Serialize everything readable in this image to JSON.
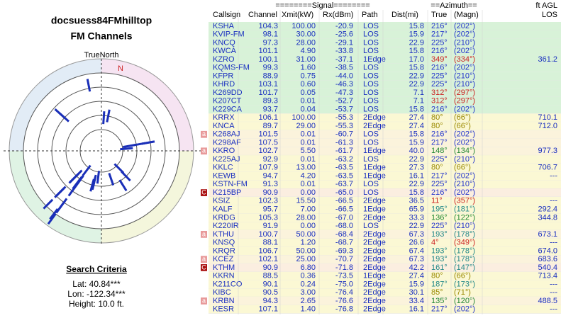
{
  "header": {
    "title": "docsuess84FMhilltop",
    "subtitle": "FM Channels"
  },
  "compass": {
    "label": "TrueNorth",
    "north": "N"
  },
  "search": {
    "title": "Search Criteria",
    "lat": "Lat: 40.84***",
    "lon": "Lon: -122.34***",
    "height": "Height: 10.0 ft."
  },
  "table": {
    "group_headers": {
      "signal": "========Signal========",
      "azimuth": "==Azimuth==",
      "agl": "ft AGL"
    },
    "columns": [
      "Callsign",
      "Channel",
      "Xmit(kW)",
      "Rx(dBm)",
      "Path",
      "Dist(mi)",
      "True",
      "(Magn)",
      "LOS"
    ],
    "rows": [
      {
        "cells": [
          "KSHA",
          "104.3",
          "100.00",
          "-20.9",
          "LOS",
          "15.8",
          "216°",
          "(202°)"
        ],
        "az_color": "#2233cc",
        "bg": "#d8f2d8"
      },
      {
        "cells": [
          "KVIP-FM",
          "98.1",
          "30.00",
          "-25.6",
          "LOS",
          "15.9",
          "217°",
          "(202°)"
        ],
        "az_color": "#2233cc",
        "bg": "#d8f2d8"
      },
      {
        "cells": [
          "KNCQ",
          "97.3",
          "28.00",
          "-29.1",
          "LOS",
          "22.9",
          "225°",
          "(210°)"
        ],
        "az_color": "#2233cc",
        "bg": "#d8f2d8"
      },
      {
        "cells": [
          "KWCA",
          "101.1",
          "4.90",
          "-33.8",
          "LOS",
          "15.8",
          "216°",
          "(202°)"
        ],
        "az_color": "#2233cc",
        "bg": "#d8f2d8"
      },
      {
        "cells": [
          "KZRO",
          "100.1",
          "31.00",
          "-37.1",
          "1Edge",
          "17.0",
          "349°",
          "(334°)",
          "361.2"
        ],
        "az_color": "#cc2222",
        "bg": "#d8f2d8"
      },
      {
        "cells": [
          "KQMS-FM",
          "99.3",
          "1.60",
          "-38.5",
          "LOS",
          "15.8",
          "216°",
          "(202°)"
        ],
        "az_color": "#2233cc",
        "bg": "#d8f2d8"
      },
      {
        "cells": [
          "KFPR",
          "88.9",
          "0.75",
          "-44.0",
          "LOS",
          "22.9",
          "225°",
          "(210°)"
        ],
        "az_color": "#2233cc",
        "bg": "#d8f2d8"
      },
      {
        "cells": [
          "KHRD",
          "103.1",
          "0.60",
          "-46.3",
          "LOS",
          "22.9",
          "225°",
          "(210°)"
        ],
        "az_color": "#2233cc",
        "bg": "#d8f2d8"
      },
      {
        "cells": [
          "K269DD",
          "101.7",
          "0.05",
          "-47.3",
          "LOS",
          "7.1",
          "312°",
          "(297°)"
        ],
        "az_color": "#cc2222",
        "bg": "#d8f2d8"
      },
      {
        "cells": [
          "K207CT",
          "89.3",
          "0.01",
          "-52.7",
          "LOS",
          "7.1",
          "312°",
          "(297°)"
        ],
        "az_color": "#cc2222",
        "bg": "#d8f2d8"
      },
      {
        "cells": [
          "K229CA",
          "93.7",
          "0.04",
          "-53.7",
          "LOS",
          "15.8",
          "216°",
          "(202°)"
        ],
        "az_color": "#2233cc",
        "bg": "#d8f2d8"
      },
      {
        "cells": [
          "KRRX",
          "106.1",
          "100.00",
          "-55.3",
          "2Edge",
          "27.4",
          "80°",
          "(66°)",
          "710.1"
        ],
        "az_color": "#998800",
        "bg": "#fbf8d4"
      },
      {
        "cells": [
          "KNCA",
          "89.7",
          "29.00",
          "-55.3",
          "2Edge",
          "27.4",
          "80°",
          "(66°)",
          "712.0"
        ],
        "az_color": "#998800",
        "bg": "#fbf8d4"
      },
      {
        "flag": "a",
        "cells": [
          "K268AJ",
          "101.5",
          "0.01",
          "-60.7",
          "LOS",
          "15.8",
          "216°",
          "(202°)"
        ],
        "az_color": "#2233cc",
        "bg": "#fbf3dc"
      },
      {
        "cells": [
          "K298AF",
          "107.5",
          "0.01",
          "-61.3",
          "LOS",
          "15.9",
          "217°",
          "(202°)"
        ],
        "az_color": "#2233cc",
        "bg": "#fbf3dc"
      },
      {
        "flag": "a",
        "cells": [
          "KKRO",
          "102.7",
          "5.50",
          "-61.7",
          "1Edge",
          "40.0",
          "148°",
          "(134°)",
          "977.3"
        ],
        "az_color": "#228833",
        "bg": "#fbf3dc"
      },
      {
        "cells": [
          "K225AJ",
          "92.9",
          "0.01",
          "-63.2",
          "LOS",
          "22.9",
          "225°",
          "(210°)"
        ],
        "az_color": "#2233cc",
        "bg": "#fbf8d4"
      },
      {
        "cells": [
          "KKLC",
          "107.9",
          "13.00",
          "-63.5",
          "1Edge",
          "27.3",
          "80°",
          "(66°)",
          "706.7"
        ],
        "az_color": "#998800",
        "bg": "#fbf8d4"
      },
      {
        "cells": [
          "KEWB",
          "94.7",
          "4.20",
          "-63.5",
          "1Edge",
          "16.1",
          "217°",
          "(202°)",
          "---"
        ],
        "az_color": "#2233cc",
        "bg": "#fbf8d4"
      },
      {
        "cells": [
          "KSTN-FM",
          "91.3",
          "0.01",
          "-63.7",
          "LOS",
          "22.9",
          "225°",
          "(210°)"
        ],
        "az_color": "#2233cc",
        "bg": "#fbf8d4"
      },
      {
        "flag": "C",
        "cells": [
          "K215BP",
          "90.9",
          "0.00",
          "-65.0",
          "LOS",
          "15.8",
          "216°",
          "(202°)"
        ],
        "az_color": "#2233cc",
        "bg": "#fbeee0"
      },
      {
        "cells": [
          "KSIZ",
          "102.3",
          "15.50",
          "-66.5",
          "2Edge",
          "36.5",
          "11°",
          "(357°)",
          "---"
        ],
        "az_color": "#cc2222",
        "bg": "#fbf8d4"
      },
      {
        "cells": [
          "KALF",
          "95.7",
          "7.00",
          "-66.5",
          "1Edge",
          "65.9",
          "195°",
          "(181°)",
          "292.4"
        ],
        "az_color": "#228888",
        "bg": "#fbf8d4"
      },
      {
        "cells": [
          "KRDG",
          "105.3",
          "28.00",
          "-67.0",
          "2Edge",
          "33.3",
          "136°",
          "(122°)",
          "344.8"
        ],
        "az_color": "#228833",
        "bg": "#fbf8d4"
      },
      {
        "cells": [
          "K220IR",
          "91.9",
          "0.00",
          "-68.0",
          "LOS",
          "22.9",
          "225°",
          "(210°)"
        ],
        "az_color": "#2233cc",
        "bg": "#fbf8d4"
      },
      {
        "flag": "a",
        "cells": [
          "KTHU",
          "100.7",
          "50.00",
          "-68.4",
          "2Edge",
          "67.3",
          "193°",
          "(178°)",
          "673.1"
        ],
        "az_color": "#228888",
        "bg": "#fbf3dc"
      },
      {
        "cells": [
          "KNSQ",
          "88.1",
          "1.20",
          "-68.7",
          "2Edge",
          "26.6",
          "4°",
          "(349°)",
          "---"
        ],
        "az_color": "#cc2222",
        "bg": "#fbf8d4"
      },
      {
        "cells": [
          "KRQR",
          "106.7",
          "50.00",
          "-69.3",
          "2Edge",
          "67.4",
          "193°",
          "(178°)",
          "674.0"
        ],
        "az_color": "#228888",
        "bg": "#fbf8d4"
      },
      {
        "flag": "a",
        "cells": [
          "KCEZ",
          "102.1",
          "25.00",
          "-70.7",
          "2Edge",
          "67.3",
          "193°",
          "(178°)",
          "683.6"
        ],
        "az_color": "#228888",
        "bg": "#fbf3dc"
      },
      {
        "flag": "C",
        "cells": [
          "KTHM",
          "90.9",
          "6.80",
          "-71.8",
          "2Edge",
          "42.2",
          "161°",
          "(147°)",
          "540.4"
        ],
        "az_color": "#228888",
        "bg": "#fbeee0"
      },
      {
        "cells": [
          "KKRN",
          "88.5",
          "0.36",
          "-73.5",
          "1Edge",
          "27.4",
          "80°",
          "(66°)",
          "713.4"
        ],
        "az_color": "#998800",
        "bg": "#fbf8d4"
      },
      {
        "cells": [
          "K211CO",
          "90.1",
          "0.24",
          "-75.0",
          "2Edge",
          "15.9",
          "187°",
          "(173°)",
          "---"
        ],
        "az_color": "#228888",
        "bg": "#fbf8d4"
      },
      {
        "cells": [
          "KIBC",
          "90.5",
          "3.00",
          "-76.4",
          "2Edge",
          "30.1",
          "85°",
          "(71°)",
          "---"
        ],
        "az_color": "#998800",
        "bg": "#fbf8d4"
      },
      {
        "flag": "a",
        "cells": [
          "KRBN",
          "94.3",
          "2.65",
          "-76.6",
          "2Edge",
          "33.4",
          "135°",
          "(120°)",
          "488.5"
        ],
        "az_color": "#228833",
        "bg": "#fbf3dc"
      },
      {
        "cells": [
          "KESR",
          "107.1",
          "1.40",
          "-76.8",
          "2Edge",
          "16.1",
          "217°",
          "(202°)",
          "---"
        ],
        "az_color": "#2233cc",
        "bg": "#fbf8d4"
      }
    ]
  }
}
